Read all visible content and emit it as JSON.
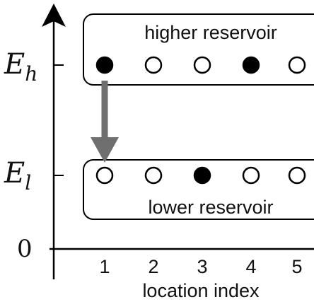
{
  "y_axis": {
    "labels": {
      "high": "E",
      "high_sub": "h",
      "low": "E",
      "low_sub": "l",
      "zero": "0"
    }
  },
  "x_axis": {
    "title": "location index",
    "ticks": [
      "1",
      "2",
      "3",
      "4",
      "5"
    ]
  },
  "reservoirs": {
    "higher": {
      "label": "higher reservoir",
      "sites": [
        true,
        false,
        false,
        true,
        false
      ]
    },
    "lower": {
      "label": "lower reservoir",
      "sites": [
        false,
        false,
        true,
        false,
        false
      ]
    }
  },
  "transition": {
    "from_reservoir": "higher",
    "to_reservoir": "lower",
    "location": "1"
  },
  "colors": {
    "ink": "#000000",
    "arrow": "#6f6f6f",
    "filled": "#000000",
    "empty": "#ffffff"
  }
}
